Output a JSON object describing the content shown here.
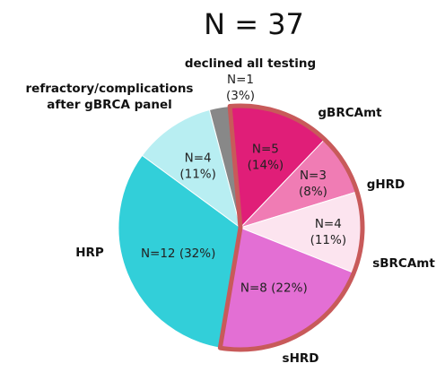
{
  "chart_data": {
    "type": "pie",
    "title": "N = 37",
    "categories": [
      "gBRCAmt",
      "gHRD",
      "sBRCAmt",
      "sHRD",
      "HRP",
      "refractory/complications after gBRCA panel",
      "declined all testing"
    ],
    "values": [
      5,
      3,
      4,
      8,
      12,
      4,
      1
    ],
    "label_lines": [
      [
        "N=5",
        "(14%)"
      ],
      [
        "N=3",
        "(8%)"
      ],
      [
        "N=4",
        "(11%)"
      ],
      [
        "N=8 (22%)"
      ],
      [
        "N=12 (32%)"
      ],
      [
        "N=4",
        "(11%)"
      ],
      [
        "N=1",
        "(3%)"
      ]
    ],
    "category_lines": [
      [
        "gBRCAmt"
      ],
      [
        "gHRD"
      ],
      [
        "sBRCAmt"
      ],
      [
        "sHRD"
      ],
      [
        "HRP"
      ],
      [
        "refractory/complications",
        "after gBRCA panel"
      ],
      [
        "declined all testing"
      ]
    ],
    "colors": [
      "#e01e78",
      "#f07cb4",
      "#fce4ef",
      "#e36fd4",
      "#32cfd9",
      "#b8eef2",
      "#888888"
    ],
    "highlight_outline_color": "#c85a5a",
    "highlighted_categories": [
      "gBRCAmt",
      "gHRD",
      "sBRCAmt",
      "sHRD"
    ]
  }
}
